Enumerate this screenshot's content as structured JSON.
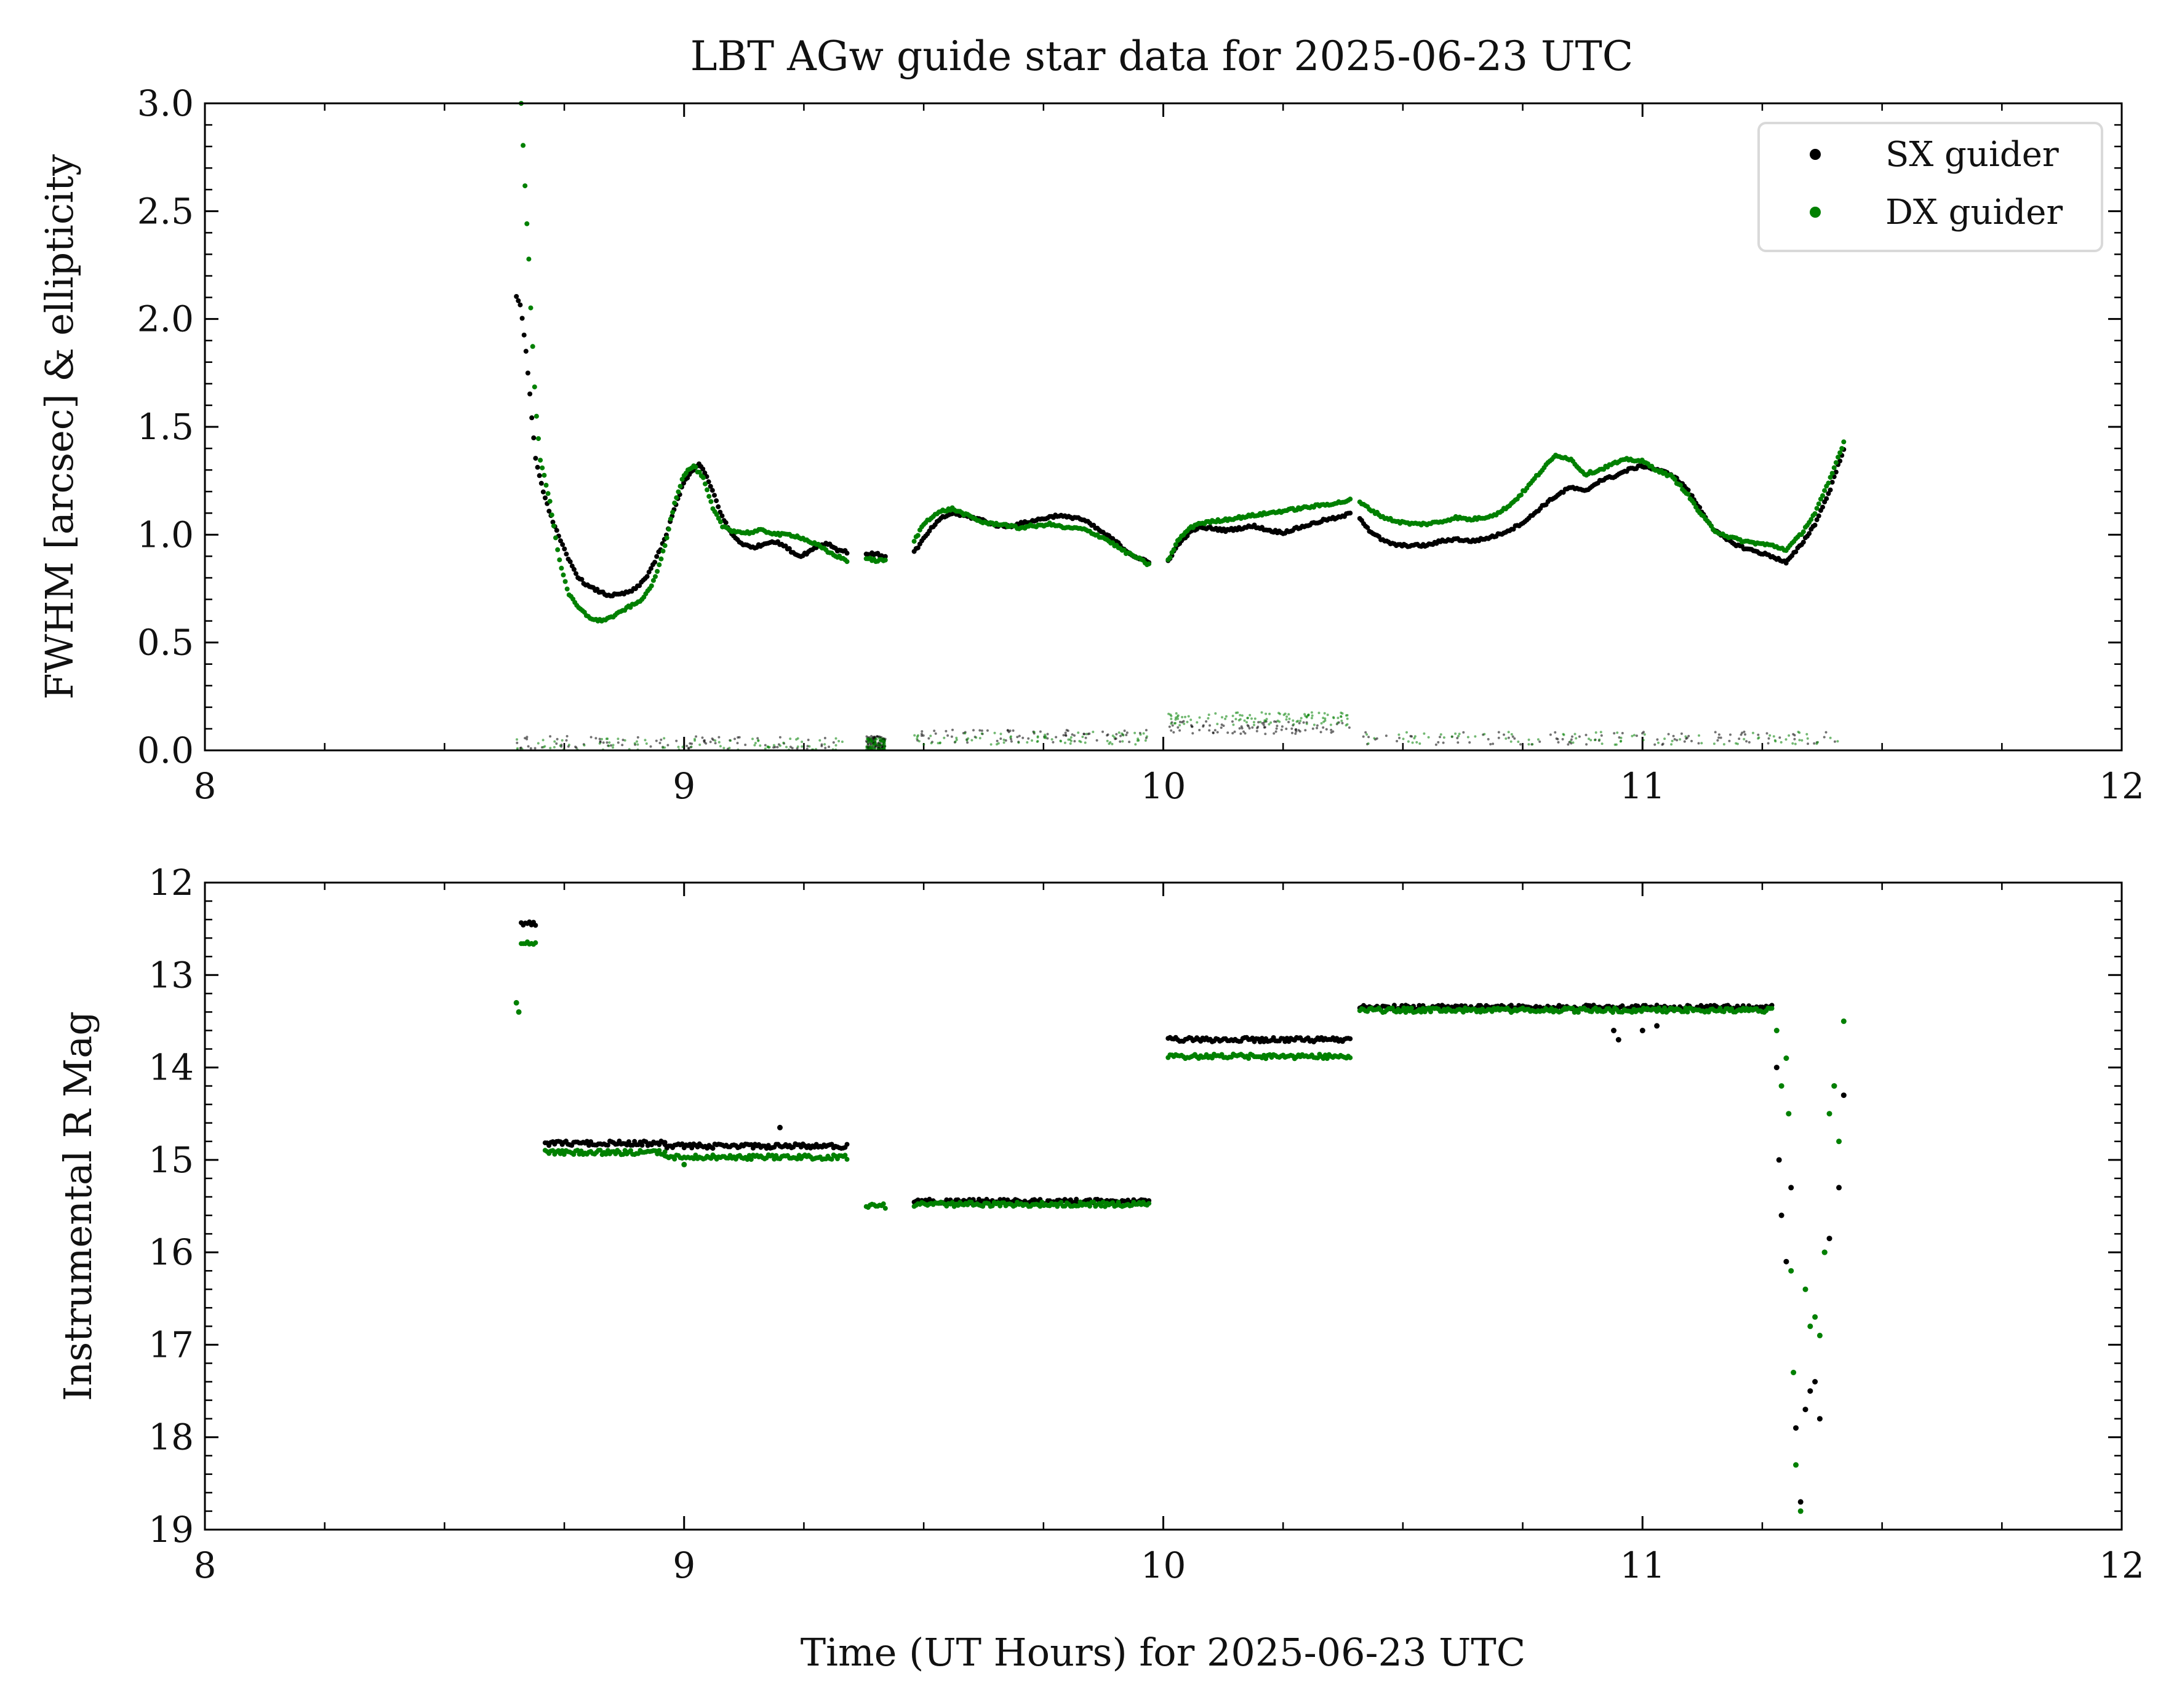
{
  "chart_data": [
    {
      "type": "scatter",
      "title": "LBT AGw guide star data for 2025-06-23 UTC",
      "xlabel": "",
      "ylabel": "FWHM [arcsec] & ellipticity",
      "xlim": [
        8,
        12
      ],
      "ylim": [
        0.0,
        3.0
      ],
      "x_ticks": [
        8,
        9,
        10,
        11,
        12
      ],
      "y_ticks": [
        "0.0",
        "0.5",
        "1.0",
        "1.5",
        "2.0",
        "2.5",
        "3.0"
      ],
      "legend": {
        "placement": "top-right",
        "entries": [
          {
            "label": "SX guider",
            "color": "#000000"
          },
          {
            "label": "DX guider",
            "color": "#008000"
          }
        ]
      },
      "segments": [
        [
          8.65,
          9.34
        ],
        [
          9.38,
          9.42
        ],
        [
          9.48,
          9.97
        ],
        [
          10.01,
          10.39
        ],
        [
          10.41,
          11.42
        ]
      ],
      "series": [
        {
          "name": "SX guider",
          "kind": "fwhm",
          "color": "#000000",
          "x": [
            8.65,
            8.66,
            8.67,
            8.68,
            8.69,
            8.7,
            8.72,
            8.74,
            8.76,
            8.78,
            8.8,
            8.82,
            8.84,
            8.86,
            8.88,
            8.9,
            8.92,
            8.94,
            8.96,
            8.98,
            9.0,
            9.02,
            9.03,
            9.04,
            9.06,
            9.08,
            9.1,
            9.12,
            9.14,
            9.16,
            9.18,
            9.2,
            9.22,
            9.24,
            9.26,
            9.28,
            9.3,
            9.32,
            9.34,
            9.38,
            9.4,
            9.42,
            9.48,
            9.5,
            9.52,
            9.54,
            9.56,
            9.58,
            9.6,
            9.62,
            9.64,
            9.66,
            9.68,
            9.7,
            9.72,
            9.74,
            9.76,
            9.78,
            9.8,
            9.82,
            9.84,
            9.86,
            9.88,
            9.9,
            9.92,
            9.94,
            9.97,
            10.01,
            10.03,
            10.05,
            10.07,
            10.1,
            10.13,
            10.16,
            10.19,
            10.22,
            10.25,
            10.28,
            10.31,
            10.34,
            10.37,
            10.39,
            10.41,
            10.43,
            10.46,
            10.49,
            10.52,
            10.55,
            10.58,
            10.61,
            10.64,
            10.67,
            10.7,
            10.73,
            10.76,
            10.79,
            10.82,
            10.85,
            10.88,
            10.91,
            10.94,
            10.97,
            11.0,
            11.03,
            11.06,
            11.09,
            11.12,
            11.15,
            11.18,
            11.21,
            11.24,
            11.27,
            11.3,
            11.33,
            11.36,
            11.39,
            11.42
          ],
          "y": [
            2.1,
            2.05,
            1.85,
            1.6,
            1.35,
            1.25,
            1.1,
            0.98,
            0.88,
            0.8,
            0.76,
            0.74,
            0.72,
            0.72,
            0.73,
            0.75,
            0.8,
            0.88,
            0.98,
            1.12,
            1.25,
            1.3,
            1.33,
            1.3,
            1.2,
            1.08,
            1.0,
            0.96,
            0.94,
            0.95,
            0.97,
            0.96,
            0.93,
            0.9,
            0.92,
            0.95,
            0.96,
            0.93,
            0.92,
            0.91,
            0.91,
            0.9,
            0.92,
            0.98,
            1.04,
            1.08,
            1.1,
            1.09,
            1.08,
            1.07,
            1.05,
            1.04,
            1.04,
            1.05,
            1.06,
            1.07,
            1.08,
            1.09,
            1.08,
            1.08,
            1.06,
            1.03,
            1.0,
            0.97,
            0.93,
            0.9,
            0.87,
            0.88,
            0.95,
            1.0,
            1.03,
            1.03,
            1.02,
            1.03,
            1.04,
            1.02,
            1.01,
            1.03,
            1.05,
            1.07,
            1.08,
            1.1,
            1.08,
            1.02,
            0.97,
            0.95,
            0.95,
            0.95,
            0.97,
            0.98,
            0.97,
            0.98,
            1.0,
            1.03,
            1.07,
            1.13,
            1.18,
            1.22,
            1.2,
            1.25,
            1.27,
            1.3,
            1.32,
            1.3,
            1.28,
            1.22,
            1.12,
            1.02,
            0.97,
            0.94,
            0.92,
            0.9,
            0.87,
            0.95,
            1.05,
            1.2,
            1.4
          ]
        },
        {
          "name": "DX guider",
          "kind": "fwhm",
          "color": "#008000",
          "x": [
            8.66,
            8.665,
            8.67,
            8.675,
            8.68,
            8.69,
            8.7,
            8.72,
            8.74,
            8.76,
            8.78,
            8.8,
            8.82,
            8.84,
            8.86,
            8.88,
            8.9,
            8.92,
            8.94,
            8.96,
            8.98,
            9.0,
            9.02,
            9.04,
            9.06,
            9.08,
            9.1,
            9.12,
            9.14,
            9.16,
            9.18,
            9.2,
            9.22,
            9.24,
            9.26,
            9.28,
            9.3,
            9.32,
            9.34,
            9.38,
            9.4,
            9.42,
            9.48,
            9.5,
            9.52,
            9.54,
            9.56,
            9.58,
            9.6,
            9.62,
            9.64,
            9.66,
            9.68,
            9.7,
            9.72,
            9.74,
            9.76,
            9.78,
            9.8,
            9.82,
            9.84,
            9.86,
            9.88,
            9.9,
            9.92,
            9.94,
            9.97,
            10.01,
            10.03,
            10.05,
            10.07,
            10.1,
            10.13,
            10.16,
            10.19,
            10.22,
            10.25,
            10.28,
            10.31,
            10.34,
            10.37,
            10.39,
            10.41,
            10.43,
            10.46,
            10.49,
            10.52,
            10.55,
            10.58,
            10.61,
            10.64,
            10.67,
            10.7,
            10.73,
            10.76,
            10.79,
            10.82,
            10.85,
            10.88,
            10.91,
            10.94,
            10.97,
            11.0,
            11.03,
            11.06,
            11.09,
            11.12,
            11.15,
            11.18,
            11.21,
            11.24,
            11.27,
            11.3,
            11.33,
            11.36,
            11.39,
            11.42
          ],
          "y": [
            3.0,
            2.75,
            2.52,
            2.33,
            2.05,
            1.6,
            1.35,
            1.15,
            0.88,
            0.72,
            0.66,
            0.62,
            0.6,
            0.61,
            0.63,
            0.66,
            0.68,
            0.72,
            0.8,
            0.95,
            1.15,
            1.28,
            1.32,
            1.26,
            1.12,
            1.04,
            1.02,
            1.01,
            1.01,
            1.02,
            1.01,
            1.0,
            1.0,
            0.99,
            0.97,
            0.95,
            0.92,
            0.9,
            0.88,
            0.89,
            0.88,
            0.88,
            0.97,
            1.05,
            1.09,
            1.11,
            1.12,
            1.1,
            1.08,
            1.06,
            1.05,
            1.05,
            1.04,
            1.03,
            1.04,
            1.04,
            1.05,
            1.04,
            1.03,
            1.03,
            1.02,
            1.0,
            0.98,
            0.95,
            0.92,
            0.9,
            0.86,
            0.88,
            0.97,
            1.02,
            1.05,
            1.06,
            1.07,
            1.08,
            1.09,
            1.1,
            1.11,
            1.12,
            1.13,
            1.14,
            1.15,
            1.16,
            1.15,
            1.12,
            1.08,
            1.06,
            1.05,
            1.05,
            1.06,
            1.08,
            1.07,
            1.08,
            1.1,
            1.15,
            1.22,
            1.3,
            1.37,
            1.35,
            1.28,
            1.3,
            1.33,
            1.35,
            1.34,
            1.3,
            1.27,
            1.2,
            1.1,
            1.02,
            0.99,
            0.97,
            0.96,
            0.95,
            0.93,
            1.0,
            1.1,
            1.25,
            1.43
          ]
        },
        {
          "name": "SX guider",
          "kind": "ellipticity",
          "color": "#000000",
          "level": [
            0.03,
            0.03,
            0.06,
            0.1,
            0.05
          ],
          "spread": 0.03,
          "count": 450
        },
        {
          "name": "DX guider",
          "kind": "ellipticity",
          "color": "#008000",
          "level": [
            0.02,
            0.02,
            0.05,
            0.14,
            0.05
          ],
          "spread": 0.03,
          "count": 450
        }
      ]
    },
    {
      "type": "scatter",
      "title": "",
      "xlabel": "Time (UT Hours) for 2025-06-23 UTC",
      "ylabel": "Instrumental R Mag",
      "xlim": [
        8,
        12
      ],
      "ylim": [
        19,
        12
      ],
      "y_inverted": true,
      "x_ticks": [
        8,
        9,
        10,
        11,
        12
      ],
      "y_ticks": [
        12,
        13,
        14,
        15,
        16,
        17,
        18,
        19
      ],
      "series": [
        {
          "name": "SX guider",
          "color": "#000000",
          "runs": [
            {
              "x": [
                8.66,
                8.69
              ],
              "y": 12.45
            },
            {
              "x": [
                8.71,
                8.96
              ],
              "y": 14.82
            },
            {
              "x": [
                8.96,
                9.34
              ],
              "y": 14.85
            },
            {
              "x": [
                9.48,
                9.97
              ],
              "y": 15.45
            },
            {
              "x": [
                10.01,
                10.39
              ],
              "y": 13.7
            },
            {
              "x": [
                10.41,
                11.27
              ],
              "y": 13.35
            }
          ],
          "sparse": {
            "x": [
              9.2,
              10.94,
              10.95,
              11.0,
              11.03,
              11.28,
              11.285,
              11.29,
              11.3,
              11.31,
              11.32,
              11.33,
              11.34,
              11.35,
              11.36,
              11.37,
              11.38,
              11.39,
              11.4,
              11.41,
              11.42
            ],
            "y": [
              14.65,
              13.6,
              13.7,
              13.6,
              13.55,
              14.0,
              15.0,
              15.6,
              16.1,
              15.3,
              17.9,
              18.7,
              17.7,
              17.5,
              17.4,
              17.8,
              16.0,
              15.85,
              14.2,
              15.3,
              14.3
            ]
          }
        },
        {
          "name": "DX guider",
          "color": "#008000",
          "runs": [
            {
              "x": [
                8.66,
                8.69
              ],
              "y": 12.65
            },
            {
              "x": [
                8.71,
                8.96
              ],
              "y": 14.92
            },
            {
              "x": [
                8.96,
                9.34
              ],
              "y": 14.97
            },
            {
              "x": [
                9.38,
                9.42
              ],
              "y": 15.5
            },
            {
              "x": [
                9.48,
                9.97
              ],
              "y": 15.48
            },
            {
              "x": [
                10.01,
                10.39
              ],
              "y": 13.88
            },
            {
              "x": [
                10.41,
                11.27
              ],
              "y": 13.38
            }
          ],
          "sparse": {
            "x": [
              8.65,
              8.655,
              9.0,
              11.28,
              11.29,
              11.3,
              11.305,
              11.31,
              11.315,
              11.32,
              11.33,
              11.34,
              11.35,
              11.36,
              11.37,
              11.38,
              11.39,
              11.4,
              11.41,
              11.42
            ],
            "y": [
              13.3,
              13.4,
              15.05,
              13.6,
              14.2,
              13.9,
              14.5,
              16.2,
              17.3,
              18.3,
              18.8,
              16.4,
              16.8,
              16.7,
              16.9,
              16.0,
              14.5,
              14.2,
              14.8,
              13.5
            ]
          }
        }
      ]
    }
  ]
}
